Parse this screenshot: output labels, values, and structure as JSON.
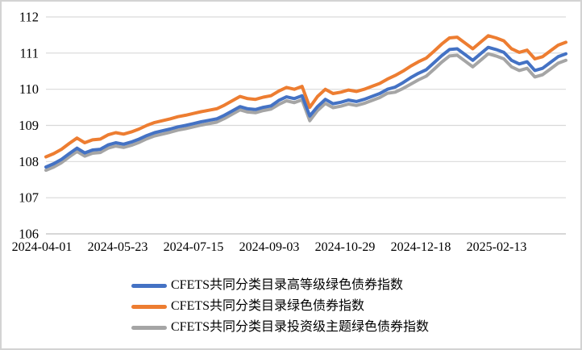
{
  "chart_data": {
    "type": "line",
    "title": "",
    "xlabel": "",
    "ylabel": "",
    "ylim": [
      106,
      112
    ],
    "yticks": [
      106,
      107,
      108,
      109,
      110,
      111,
      112
    ],
    "x_tick_labels": [
      "2024-04-01",
      "2024-05-23",
      "2024-07-15",
      "2024-09-03",
      "2024-10-29",
      "2024-12-18",
      "2025-02-13"
    ],
    "grid": true,
    "legend_position": "bottom-left",
    "series": [
      {
        "name": "CFETS共同分类目录高等级绿色债券指数",
        "color": "#4472C4",
        "values": [
          107.85,
          107.94,
          108.06,
          108.22,
          108.37,
          108.24,
          108.32,
          108.34,
          108.46,
          108.52,
          108.48,
          108.54,
          108.62,
          108.72,
          108.8,
          108.85,
          108.9,
          108.96,
          109.0,
          109.05,
          109.1,
          109.14,
          109.18,
          109.28,
          109.4,
          109.52,
          109.46,
          109.44,
          109.5,
          109.54,
          109.69,
          109.79,
          109.74,
          109.82,
          109.26,
          109.52,
          109.72,
          109.6,
          109.64,
          109.7,
          109.66,
          109.72,
          109.8,
          109.88,
          110.0,
          110.06,
          110.18,
          110.32,
          110.44,
          110.54,
          110.73,
          110.93,
          111.1,
          111.12,
          110.96,
          110.8,
          110.98,
          111.16,
          111.1,
          111.02,
          110.8,
          110.7,
          110.76,
          110.52,
          110.58,
          110.74,
          110.9,
          110.98
        ]
      },
      {
        "name": "CFETS共同分类目录绿色债券指数",
        "color": "#ED7D31",
        "values": [
          108.13,
          108.22,
          108.34,
          108.5,
          108.65,
          108.52,
          108.6,
          108.62,
          108.74,
          108.8,
          108.76,
          108.82,
          108.9,
          109.0,
          109.08,
          109.13,
          109.18,
          109.24,
          109.28,
          109.33,
          109.38,
          109.42,
          109.46,
          109.56,
          109.68,
          109.8,
          109.74,
          109.72,
          109.78,
          109.82,
          109.95,
          110.05,
          110.0,
          110.08,
          109.5,
          109.8,
          110.0,
          109.88,
          109.92,
          109.98,
          109.94,
          110.0,
          110.08,
          110.16,
          110.28,
          110.38,
          110.5,
          110.64,
          110.76,
          110.86,
          111.05,
          111.25,
          111.42,
          111.44,
          111.28,
          111.12,
          111.3,
          111.48,
          111.42,
          111.34,
          111.12,
          111.02,
          111.08,
          110.84,
          110.9,
          111.06,
          111.22,
          111.3
        ]
      },
      {
        "name": "CFETS共同分类目录投资级主题绿色债券指数",
        "color": "#A5A5A5",
        "values": [
          107.76,
          107.85,
          107.97,
          108.13,
          108.28,
          108.15,
          108.23,
          108.25,
          108.37,
          108.43,
          108.39,
          108.45,
          108.53,
          108.63,
          108.71,
          108.76,
          108.81,
          108.87,
          108.91,
          108.96,
          109.01,
          109.05,
          109.09,
          109.19,
          109.31,
          109.43,
          109.37,
          109.35,
          109.41,
          109.45,
          109.58,
          109.68,
          109.63,
          109.71,
          109.13,
          109.41,
          109.61,
          109.49,
          109.53,
          109.59,
          109.55,
          109.61,
          109.69,
          109.77,
          109.89,
          109.92,
          110.02,
          110.14,
          110.26,
          110.36,
          110.55,
          110.75,
          110.92,
          110.94,
          110.78,
          110.62,
          110.8,
          110.98,
          110.92,
          110.84,
          110.62,
          110.52,
          110.58,
          110.34,
          110.4,
          110.56,
          110.72,
          110.8
        ]
      }
    ]
  },
  "colors": {
    "gridline": "#d9d9d9",
    "axis_line": "#bfbfbf",
    "tick_text": "#000000",
    "frame_border": "#d3d3d3",
    "background": "#ffffff"
  }
}
